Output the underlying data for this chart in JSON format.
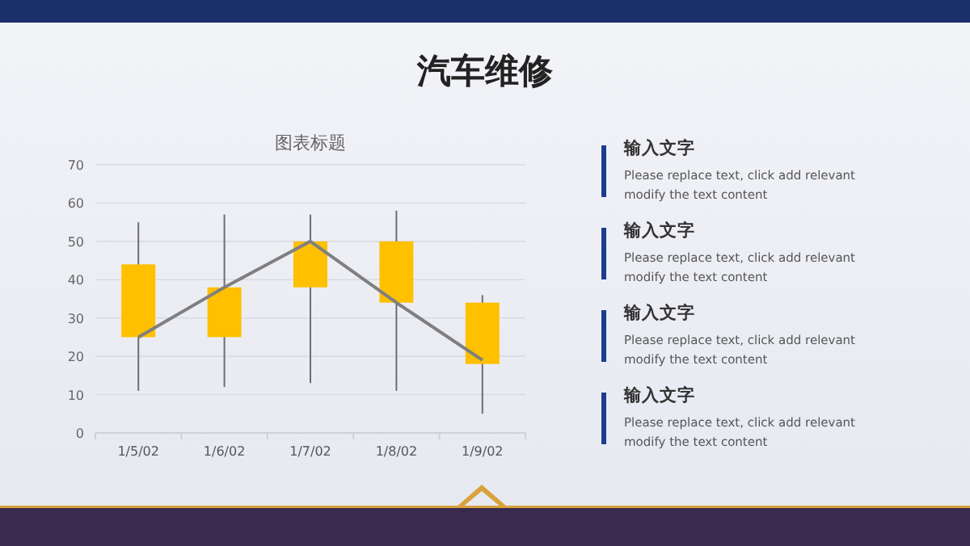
{
  "chart_data": {
    "type": "candlestick",
    "title": "汽车维修",
    "subtitle": "图表标题",
    "categories": [
      "1/5/02",
      "1/6/02",
      "1/7/02",
      "1/8/02",
      "1/9/02"
    ],
    "ohlc": [
      [
        25,
        55,
        11,
        44
      ],
      [
        25,
        57,
        12,
        38
      ],
      [
        38,
        57,
        13,
        50
      ],
      [
        34,
        58,
        11,
        50
      ],
      [
        18,
        36,
        5,
        34
      ]
    ],
    "color": "#ffc000",
    "series": [
      {
        "type": "line",
        "color": "#7f7f7f",
        "values": [
          25,
          38,
          50,
          34,
          19
        ]
      }
    ],
    "ylim": [
      0,
      70
    ],
    "yticks": [
      0,
      10,
      20,
      30,
      40,
      50,
      60,
      70
    ],
    "grid": "y",
    "annotations": [
      "输入文字",
      "Please replace text, click add relevant modify the text content",
      "输入文字",
      "Please replace text, click add relevant modify the text content",
      "输入文字",
      "Please replace text, click add relevant modify the text content",
      "输入文字",
      "Please replace text, click add relevant modify the text content"
    ]
  }
}
